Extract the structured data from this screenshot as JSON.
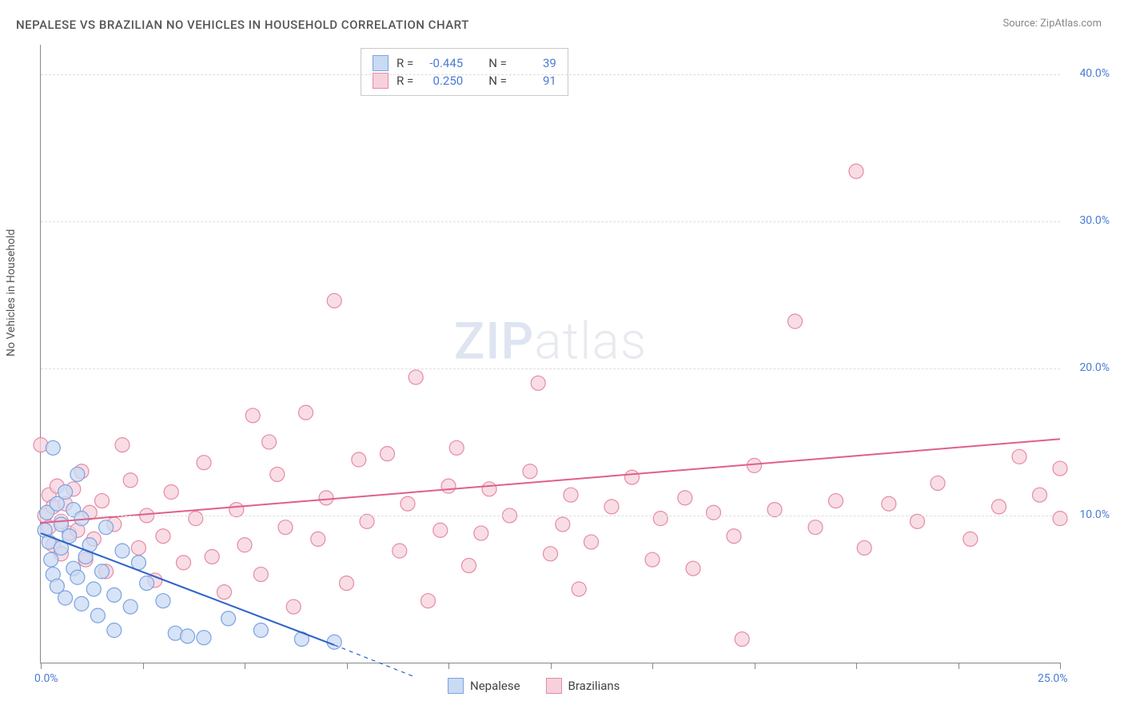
{
  "title": "NEPALESE VS BRAZILIAN NO VEHICLES IN HOUSEHOLD CORRELATION CHART",
  "source": "Source: ZipAtlas.com",
  "y_axis_title": "No Vehicles in Household",
  "watermark_a": "ZIP",
  "watermark_b": "atlas",
  "chart": {
    "type": "scatter",
    "xlim": [
      0,
      25
    ],
    "ylim": [
      0,
      42
    ],
    "x_ticks": [
      0,
      2.5,
      5,
      7.5,
      10,
      12.5,
      15,
      17.5,
      20,
      22.5,
      25
    ],
    "x_tick_labels": {
      "0": "0.0%",
      "25": "25.0%"
    },
    "y_ticks": [
      10,
      20,
      30,
      40
    ],
    "y_tick_labels": {
      "10": "10.0%",
      "20": "20.0%",
      "30": "30.0%",
      "40": "40.0%"
    },
    "grid_color": "#dddddd",
    "axis_color": "#888888",
    "label_color": "#4a7bd6",
    "background_color": "#ffffff",
    "marker_radius": 9,
    "marker_stroke_width": 1.2,
    "line_width": 2
  },
  "series": {
    "nepalese": {
      "label": "Nepalese",
      "fill": "#c9daf3",
      "stroke": "#7aa3e0",
      "line_color": "#2f62c9",
      "R": "-0.445",
      "N": "39",
      "trend": {
        "x1": 0,
        "y1": 8.8,
        "x2": 7.2,
        "y2": 1.2,
        "dash_x2": 9.2,
        "dash_y2": -1.0
      },
      "points": [
        [
          0.1,
          9.0
        ],
        [
          0.15,
          10.2
        ],
        [
          0.2,
          8.2
        ],
        [
          0.25,
          7.0
        ],
        [
          0.3,
          14.6
        ],
        [
          0.3,
          6.0
        ],
        [
          0.4,
          10.8
        ],
        [
          0.4,
          5.2
        ],
        [
          0.5,
          9.4
        ],
        [
          0.5,
          7.8
        ],
        [
          0.6,
          11.6
        ],
        [
          0.6,
          4.4
        ],
        [
          0.7,
          8.6
        ],
        [
          0.8,
          6.4
        ],
        [
          0.8,
          10.4
        ],
        [
          0.9,
          12.8
        ],
        [
          0.9,
          5.8
        ],
        [
          1.0,
          9.8
        ],
        [
          1.0,
          4.0
        ],
        [
          1.1,
          7.2
        ],
        [
          1.2,
          8.0
        ],
        [
          1.3,
          5.0
        ],
        [
          1.4,
          3.2
        ],
        [
          1.5,
          6.2
        ],
        [
          1.6,
          9.2
        ],
        [
          1.8,
          4.6
        ],
        [
          1.8,
          2.2
        ],
        [
          2.0,
          7.6
        ],
        [
          2.2,
          3.8
        ],
        [
          2.4,
          6.8
        ],
        [
          2.6,
          5.4
        ],
        [
          3.0,
          4.2
        ],
        [
          3.3,
          2.0
        ],
        [
          3.6,
          1.8
        ],
        [
          4.0,
          1.7
        ],
        [
          4.6,
          3.0
        ],
        [
          5.4,
          2.2
        ],
        [
          6.4,
          1.6
        ],
        [
          7.2,
          1.4
        ]
      ]
    },
    "brazilians": {
      "label": "Brazilians",
      "fill": "#f6d1dc",
      "stroke": "#e78aa6",
      "line_color": "#e15f88",
      "R": "0.250",
      "N": "91",
      "trend": {
        "x1": 0,
        "y1": 9.5,
        "x2": 25,
        "y2": 15.2
      },
      "points": [
        [
          0.0,
          14.8
        ],
        [
          0.1,
          10.0
        ],
        [
          0.2,
          9.2
        ],
        [
          0.2,
          11.4
        ],
        [
          0.3,
          8.0
        ],
        [
          0.3,
          10.6
        ],
        [
          0.4,
          12.0
        ],
        [
          0.5,
          9.6
        ],
        [
          0.5,
          7.4
        ],
        [
          0.6,
          10.8
        ],
        [
          0.7,
          8.8
        ],
        [
          0.8,
          11.8
        ],
        [
          0.9,
          9.0
        ],
        [
          1.0,
          13.0
        ],
        [
          1.1,
          7.0
        ],
        [
          1.2,
          10.2
        ],
        [
          1.3,
          8.4
        ],
        [
          1.5,
          11.0
        ],
        [
          1.6,
          6.2
        ],
        [
          1.8,
          9.4
        ],
        [
          2.0,
          14.8
        ],
        [
          2.2,
          12.4
        ],
        [
          2.4,
          7.8
        ],
        [
          2.6,
          10.0
        ],
        [
          2.8,
          5.6
        ],
        [
          3.0,
          8.6
        ],
        [
          3.2,
          11.6
        ],
        [
          3.5,
          6.8
        ],
        [
          3.8,
          9.8
        ],
        [
          4.0,
          13.6
        ],
        [
          4.2,
          7.2
        ],
        [
          4.5,
          4.8
        ],
        [
          4.8,
          10.4
        ],
        [
          5.0,
          8.0
        ],
        [
          5.2,
          16.8
        ],
        [
          5.4,
          6.0
        ],
        [
          5.6,
          15.0
        ],
        [
          5.8,
          12.8
        ],
        [
          6.0,
          9.2
        ],
        [
          6.2,
          3.8
        ],
        [
          6.5,
          17.0
        ],
        [
          6.8,
          8.4
        ],
        [
          7.0,
          11.2
        ],
        [
          7.2,
          24.6
        ],
        [
          7.5,
          5.4
        ],
        [
          7.8,
          13.8
        ],
        [
          8.0,
          9.6
        ],
        [
          8.5,
          14.2
        ],
        [
          8.8,
          7.6
        ],
        [
          9.0,
          10.8
        ],
        [
          9.2,
          19.4
        ],
        [
          9.5,
          4.2
        ],
        [
          9.8,
          9.0
        ],
        [
          10.0,
          12.0
        ],
        [
          10.2,
          14.6
        ],
        [
          10.5,
          6.6
        ],
        [
          10.8,
          8.8
        ],
        [
          11.0,
          11.8
        ],
        [
          11.5,
          10.0
        ],
        [
          12.0,
          13.0
        ],
        [
          12.2,
          19.0
        ],
        [
          12.5,
          7.4
        ],
        [
          12.8,
          9.4
        ],
        [
          13.0,
          11.4
        ],
        [
          13.2,
          5.0
        ],
        [
          13.5,
          8.2
        ],
        [
          14.0,
          10.6
        ],
        [
          14.5,
          12.6
        ],
        [
          15.0,
          7.0
        ],
        [
          15.2,
          9.8
        ],
        [
          15.8,
          11.2
        ],
        [
          16.0,
          6.4
        ],
        [
          16.5,
          10.2
        ],
        [
          17.0,
          8.6
        ],
        [
          17.2,
          1.6
        ],
        [
          17.5,
          13.4
        ],
        [
          18.0,
          10.4
        ],
        [
          18.5,
          23.2
        ],
        [
          19.0,
          9.2
        ],
        [
          19.5,
          11.0
        ],
        [
          20.0,
          33.4
        ],
        [
          20.2,
          7.8
        ],
        [
          20.8,
          10.8
        ],
        [
          21.5,
          9.6
        ],
        [
          22.0,
          12.2
        ],
        [
          22.8,
          8.4
        ],
        [
          23.5,
          10.6
        ],
        [
          24.0,
          14.0
        ],
        [
          24.5,
          11.4
        ],
        [
          25.0,
          9.8
        ],
        [
          25.0,
          13.2
        ]
      ]
    }
  },
  "top_legend": {
    "R_label": "R =",
    "N_label": "N ="
  },
  "bottom_legend": {
    "items": [
      "nepalese",
      "brazilians"
    ]
  }
}
